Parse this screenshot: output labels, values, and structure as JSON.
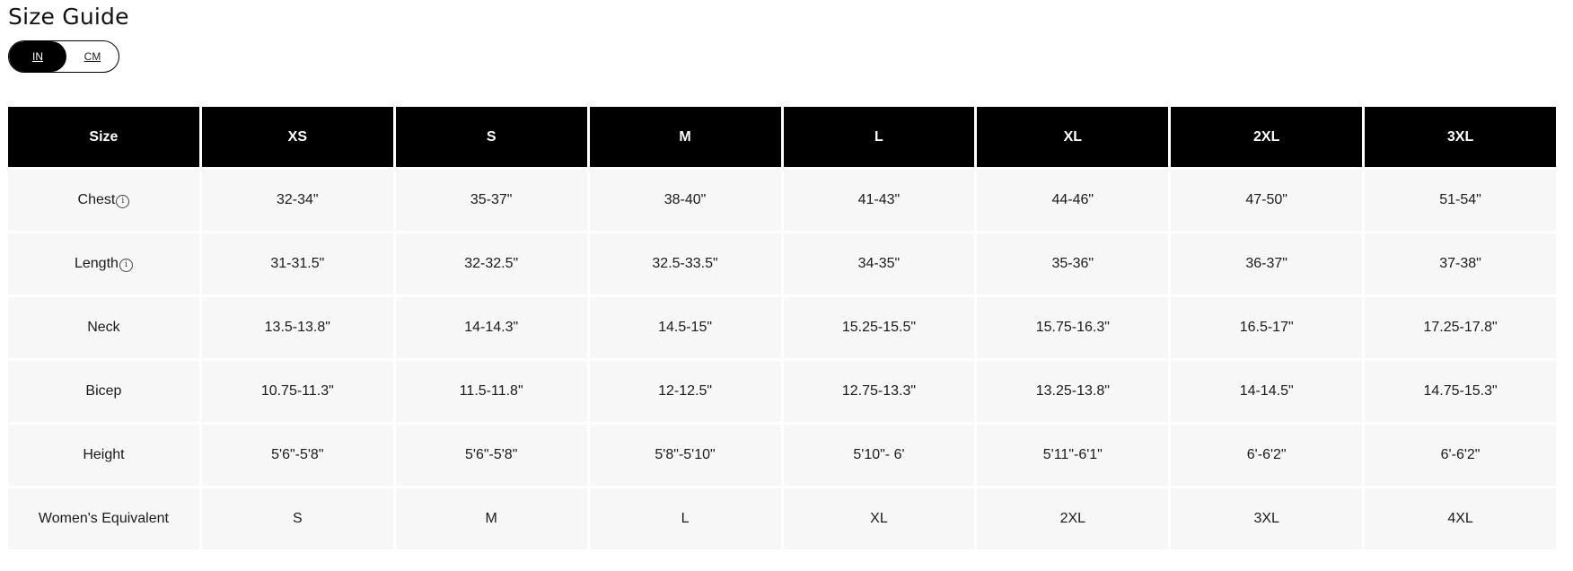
{
  "title": "Size Guide",
  "unit_toggle": {
    "options": [
      "IN",
      "CM"
    ],
    "selected": "IN"
  },
  "colors": {
    "header_bg": "#000000",
    "cell_bg": "#f7f7f7"
  },
  "table": {
    "headers": [
      "Size",
      "XS",
      "S",
      "M",
      "L",
      "XL",
      "2XL",
      "3XL"
    ],
    "rows": [
      {
        "label": "Chest",
        "info_icon": "info-circle-icon",
        "values": [
          "32-34\"",
          "35-37\"",
          "38-40\"",
          "41-43\"",
          "44-46\"",
          "47-50\"",
          "51-54\""
        ]
      },
      {
        "label": "Length",
        "info_icon": "info-circle-icon",
        "values": [
          "31-31.5\"",
          "32-32.5\"",
          "32.5-33.5\"",
          "34-35\"",
          "35-36\"",
          "36-37\"",
          "37-38\""
        ]
      },
      {
        "label": "Neck",
        "values": [
          "13.5-13.8\"",
          "14-14.3\"",
          "14.5-15\"",
          "15.25-15.5\"",
          "15.75-16.3\"",
          "16.5-17\"",
          "17.25-17.8\""
        ]
      },
      {
        "label": "Bicep",
        "values": [
          "10.75-11.3\"",
          "11.5-11.8\"",
          "12-12.5\"",
          "12.75-13.3\"",
          "13.25-13.8\"",
          "14-14.5\"",
          "14.75-15.3\""
        ]
      },
      {
        "label": "Height",
        "values": [
          "5'6\"-5'8\"",
          "5'6\"-5'8\"",
          "5'8\"-5'10\"",
          "5'10\"- 6'",
          "5'11\"-6'1\"",
          "6'-6'2\"",
          "6'-6'2\""
        ]
      },
      {
        "label": "Women's Equivalent",
        "values": [
          "S",
          "M",
          "L",
          "XL",
          "2XL",
          "3XL",
          "4XL"
        ]
      }
    ]
  }
}
